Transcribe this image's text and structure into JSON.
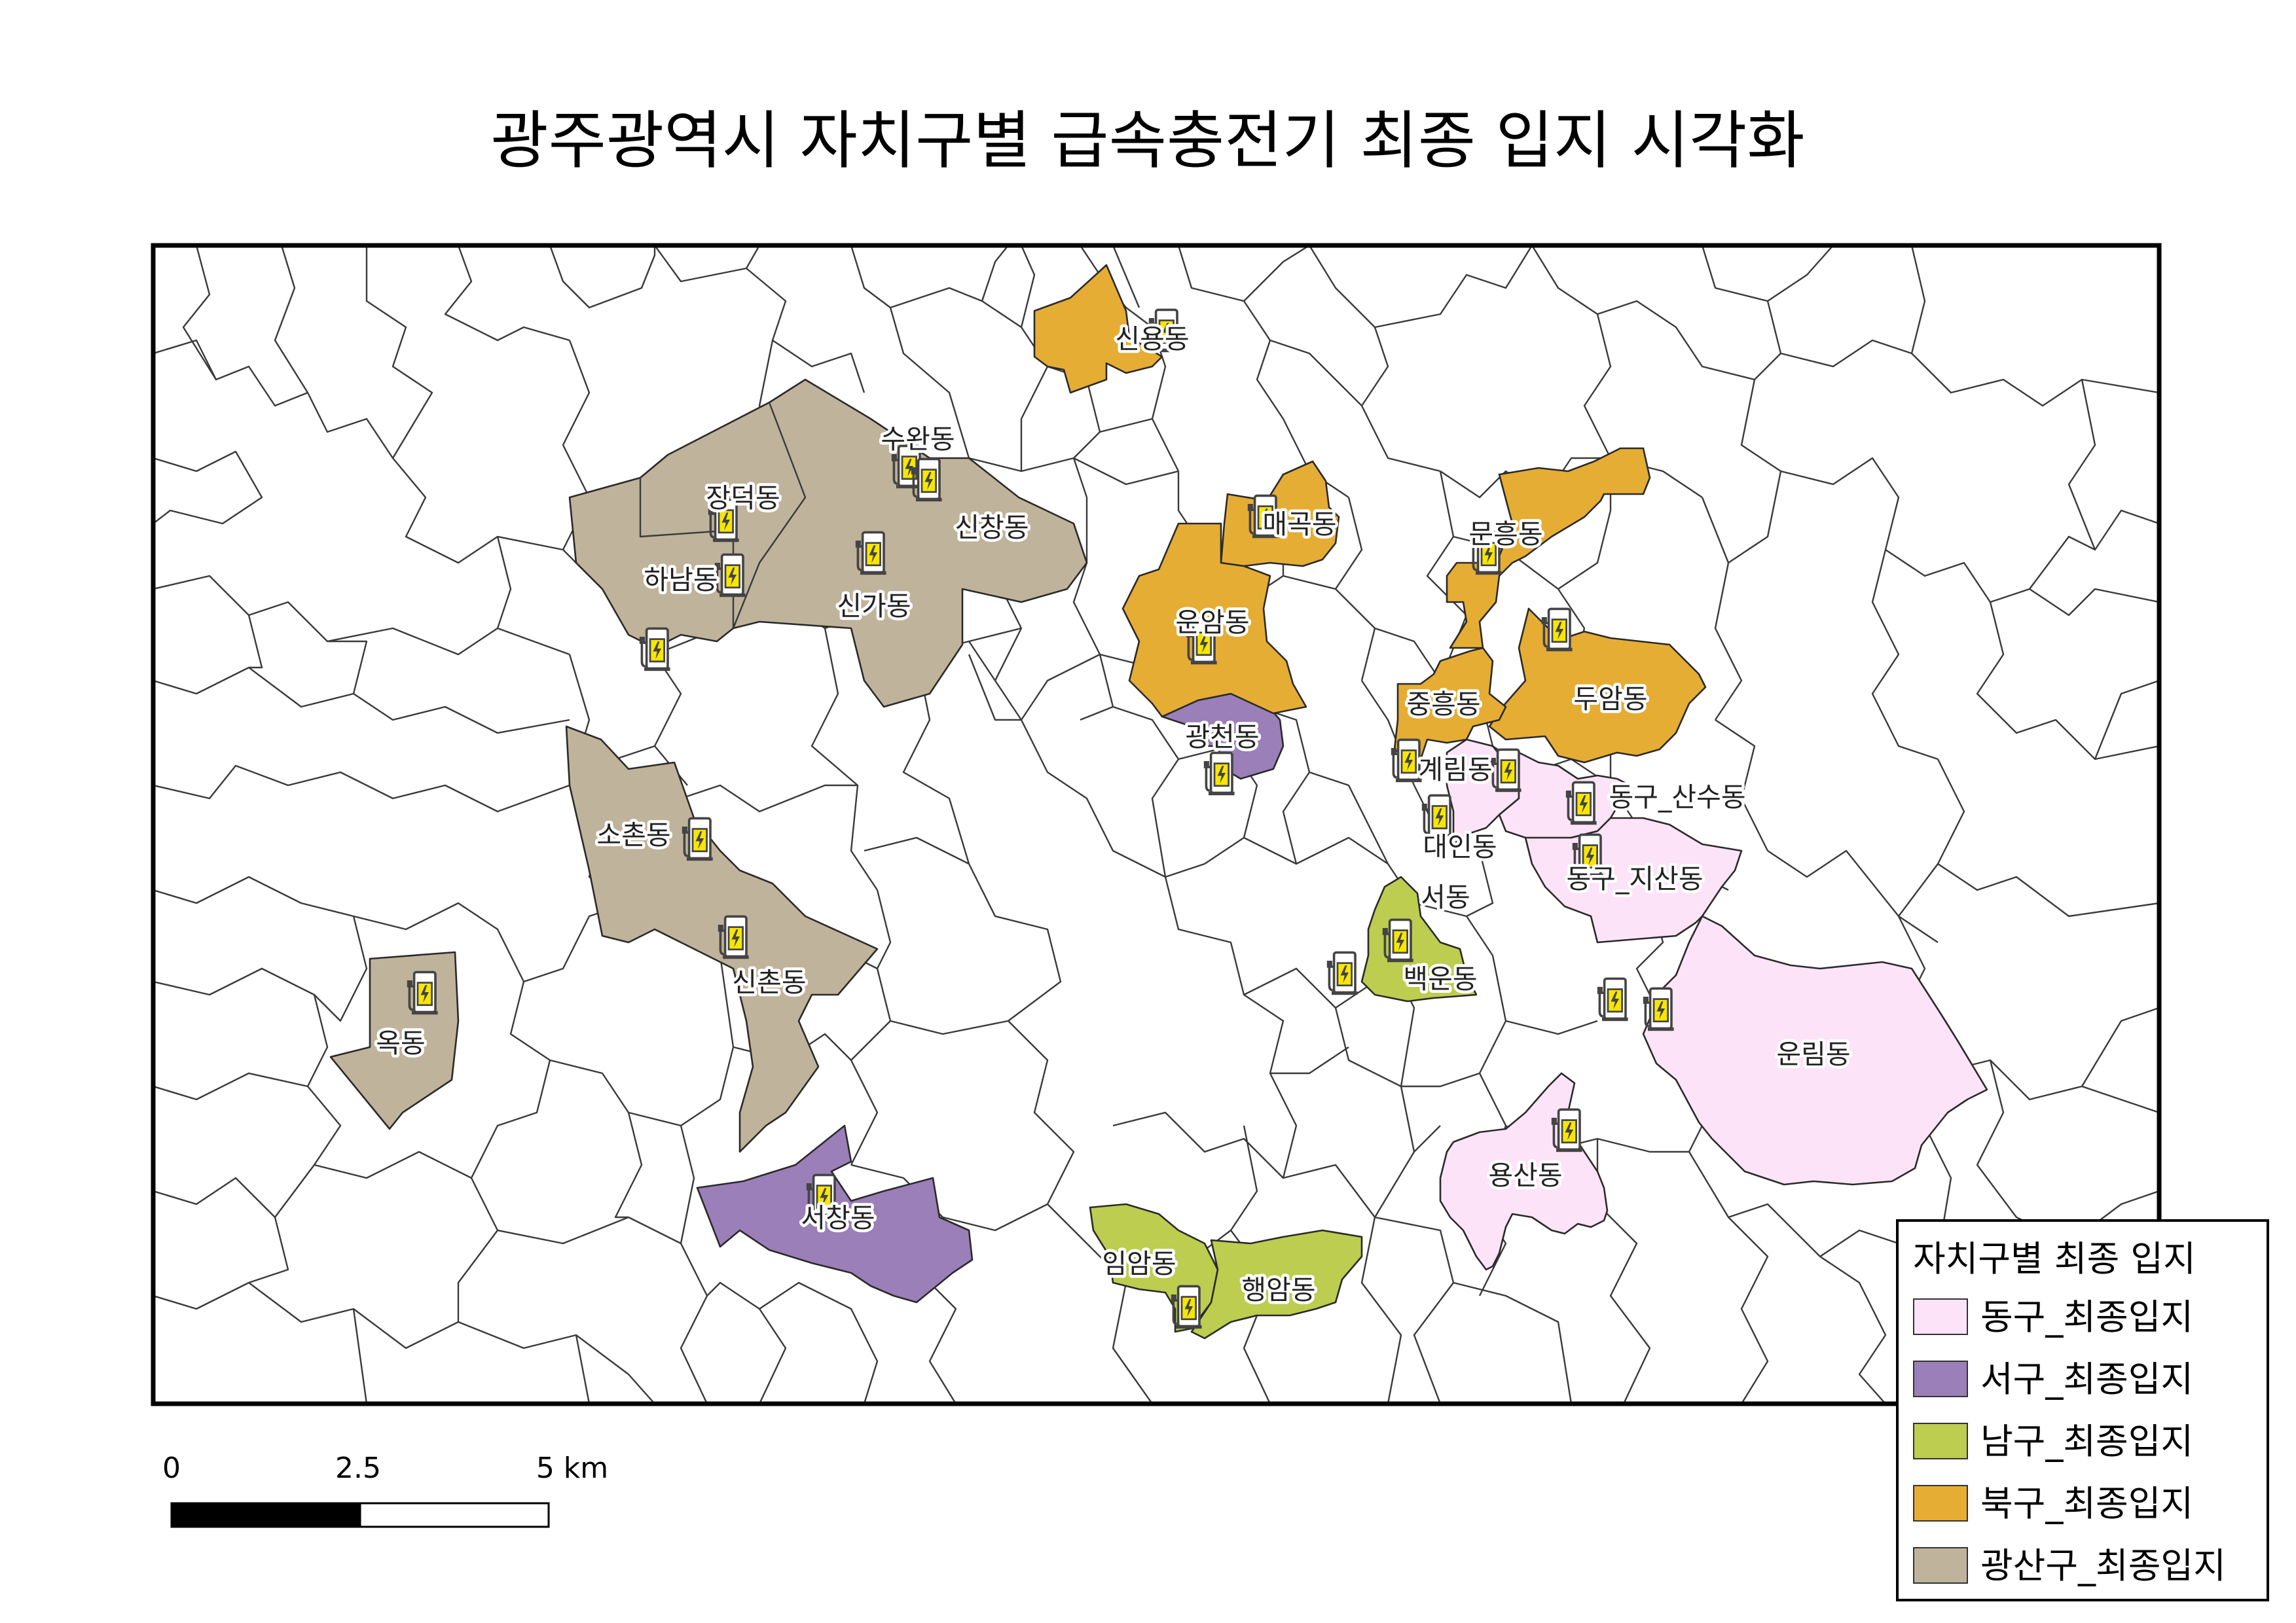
{
  "title": "광주광역시 자치구별 급속충전기 최종 입지 시각화",
  "legend": {
    "title": "자치구별 최종 입지",
    "items": [
      {
        "label": "동구_최종입지",
        "color": "#fde3f7"
      },
      {
        "label": "서구_최종입지",
        "color": "#9b7fb8"
      },
      {
        "label": "남구_최종입지",
        "color": "#bccd4f"
      },
      {
        "label": "북구_최종입지",
        "color": "#e5ad34"
      },
      {
        "label": "광산구_최종입지",
        "color": "#bfb39b"
      }
    ]
  },
  "scale_bar": {
    "labels": [
      "0",
      "2.5",
      "5 km"
    ]
  },
  "districts": {
    "dong": [
      "동구_산수동",
      "동구_지산동",
      "계림동",
      "대인동",
      "서동",
      "운림동",
      "용산동"
    ],
    "seo": [
      "광천동",
      "서창동"
    ],
    "nam": [
      "백운동",
      "임암동",
      "행암동"
    ],
    "buk": [
      "신용동",
      "매곡동",
      "문흥동",
      "운암동",
      "두암동",
      "중흥동"
    ],
    "gwangsan": [
      "수완동",
      "장덕동",
      "신창동",
      "하남동",
      "신가동",
      "소촌동",
      "신촌동",
      "옥동"
    ]
  },
  "icon": "ev-charger-icon",
  "colors": {
    "icon_fill": "#f7e600",
    "icon_frame": "#555555",
    "frame": "#000000"
  }
}
